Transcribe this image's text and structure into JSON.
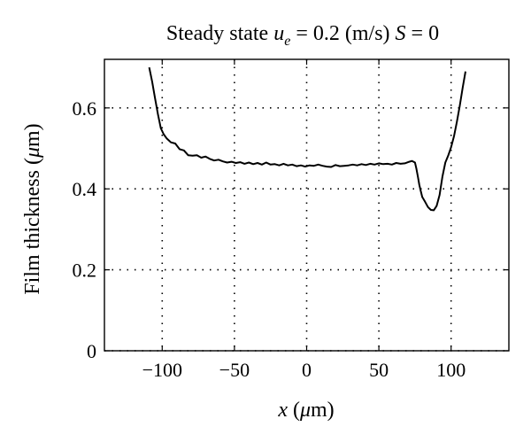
{
  "chart_data": {
    "type": "line",
    "title": {
      "prefix": "Steady state ",
      "var_main": "u",
      "var_sub": "e",
      "mid": " = 0.2 (m/s) ",
      "var2": "S",
      "suffix": " = 0"
    },
    "xlabel": {
      "var": "x",
      "rest": " (",
      "unit_greek": "μ",
      "unit_rest": "m)"
    },
    "ylabel": {
      "text": "Film thickness (",
      "unit_greek": "μ",
      "unit_rest": "m)"
    },
    "xlim": [
      -140,
      140
    ],
    "ylim": [
      0,
      0.72
    ],
    "xticks": [
      -100,
      -50,
      0,
      50,
      100
    ],
    "xtick_labels": [
      "−100",
      "−50",
      "0",
      "50",
      "100"
    ],
    "yticks": [
      0,
      0.2,
      0.4,
      0.6
    ],
    "ytick_labels": [
      "0",
      "0.2",
      "0.4",
      "0.6"
    ],
    "grid": true,
    "series": [
      {
        "color": "#000000",
        "x": [
          -109,
          -107,
          -105,
          -103,
          -101,
          -99,
          -97,
          -94,
          -91,
          -88,
          -85,
          -82,
          -79,
          -76,
          -73,
          -70,
          -67,
          -64,
          -61,
          -58,
          -55,
          -52,
          -49,
          -46,
          -43,
          -40,
          -37,
          -34,
          -31,
          -28,
          -25,
          -22,
          -19,
          -16,
          -13,
          -10,
          -7,
          -4,
          -1,
          2,
          5,
          8,
          11,
          14,
          17,
          20,
          23,
          26,
          29,
          32,
          35,
          38,
          41,
          44,
          47,
          50,
          53,
          56,
          59,
          62,
          65,
          68,
          71,
          73,
          75,
          76,
          77,
          78,
          79,
          80,
          82,
          84,
          86,
          88,
          90,
          92,
          94,
          96,
          98,
          100,
          102,
          104,
          106,
          108,
          110
        ],
        "y": [
          0.7,
          0.665,
          0.625,
          0.585,
          0.55,
          0.535,
          0.525,
          0.515,
          0.512,
          0.498,
          0.495,
          0.483,
          0.482,
          0.483,
          0.477,
          0.48,
          0.474,
          0.47,
          0.472,
          0.468,
          0.465,
          0.467,
          0.464,
          0.466,
          0.462,
          0.465,
          0.461,
          0.464,
          0.46,
          0.465,
          0.46,
          0.461,
          0.458,
          0.462,
          0.458,
          0.46,
          0.456,
          0.458,
          0.455,
          0.458,
          0.457,
          0.46,
          0.457,
          0.455,
          0.454,
          0.459,
          0.456,
          0.457,
          0.458,
          0.46,
          0.458,
          0.461,
          0.459,
          0.462,
          0.46,
          0.463,
          0.461,
          0.462,
          0.46,
          0.464,
          0.462,
          0.463,
          0.467,
          0.469,
          0.465,
          0.45,
          0.43,
          0.41,
          0.395,
          0.38,
          0.368,
          0.355,
          0.348,
          0.347,
          0.358,
          0.385,
          0.43,
          0.465,
          0.482,
          0.503,
          0.53,
          0.565,
          0.605,
          0.65,
          0.69
        ]
      }
    ]
  }
}
